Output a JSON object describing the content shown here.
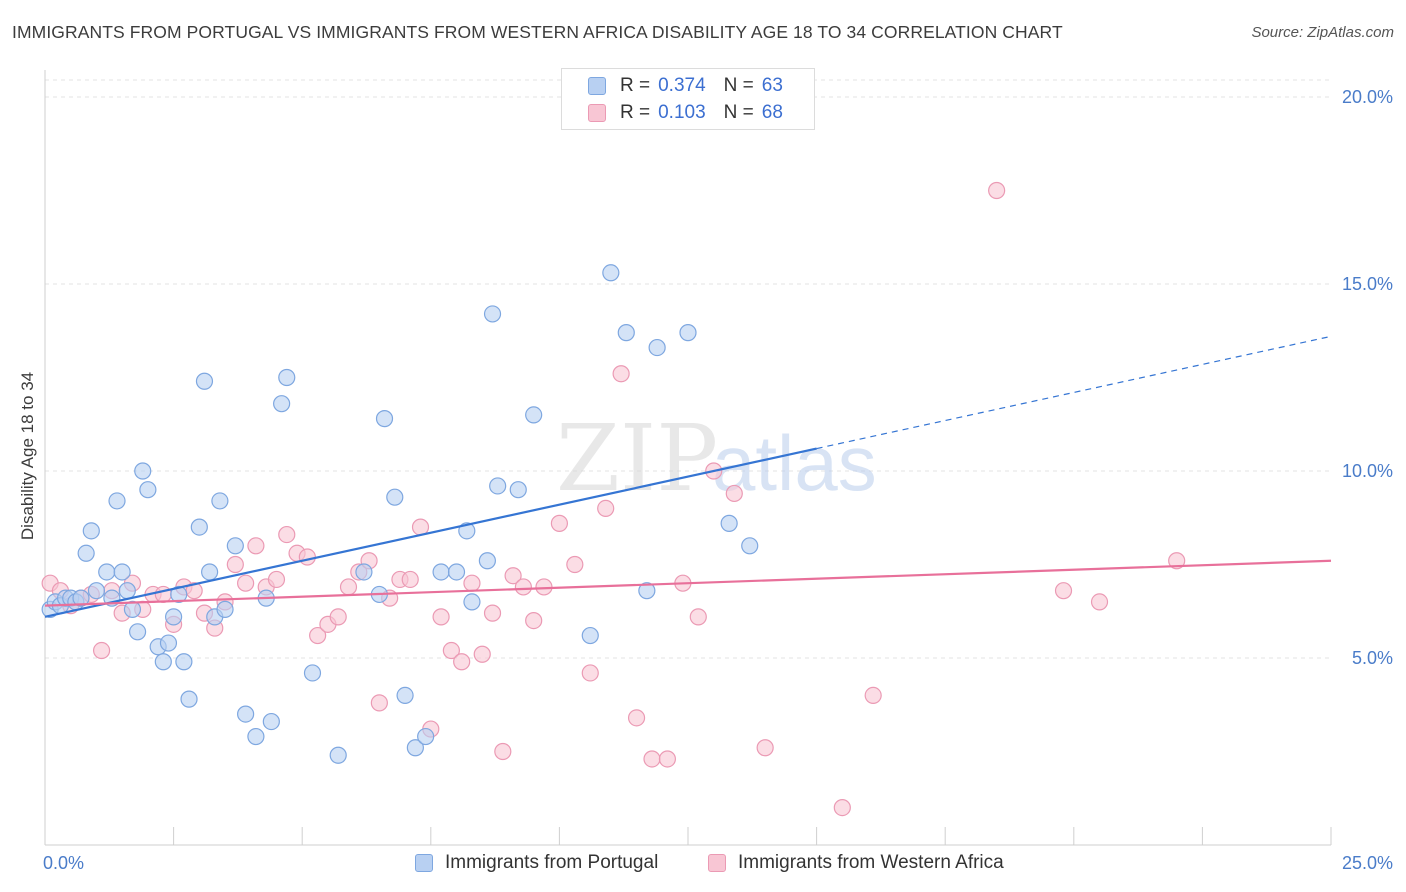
{
  "header": {
    "title": "IMMIGRANTS FROM PORTUGAL VS IMMIGRANTS FROM WESTERN AFRICA DISABILITY AGE 18 TO 34 CORRELATION CHART",
    "source": "Source: ZipAtlas.com"
  },
  "legend": {
    "portugal": {
      "r_label": "R =",
      "r_value": "0.374",
      "n_label": "N =",
      "n_value": "63"
    },
    "western_africa": {
      "r_label": "R =",
      "r_value": "0.103",
      "n_label": "N =",
      "n_value": "68"
    }
  },
  "watermark": {
    "zip": "ZIP",
    "atlas": "atlas"
  },
  "chart_data": {
    "type": "scatter",
    "ylabel": "Disability Age 18 to 34",
    "xlim": [
      0,
      25
    ],
    "ylim": [
      0,
      20.5
    ],
    "x_tick_labels": {
      "left": "0.0%",
      "right": "25.0%"
    },
    "y_ticks": [
      {
        "value": 5,
        "label": "5.0%"
      },
      {
        "value": 10,
        "label": "10.0%"
      },
      {
        "value": 15,
        "label": "15.0%"
      },
      {
        "value": 20,
        "label": "20.0%"
      }
    ],
    "grid": "horizontal-dashed",
    "legend_position": "top-center",
    "colors": {
      "portugal_fill": "#b8d0f2",
      "portugal_stroke": "#7ea7e0",
      "portugal_line": "#3575d3",
      "africa_fill": "#f8c6d4",
      "africa_stroke": "#eb9ab4",
      "africa_line": "#e8709a"
    },
    "series": [
      {
        "name": "Immigrants from Portugal",
        "trend": {
          "x0": 0,
          "y0": 6.1,
          "x1": 15,
          "y1": 10.6,
          "dash_to_x": 25,
          "dash_to_y": 13.6
        },
        "points": [
          [
            0.1,
            6.3
          ],
          [
            0.2,
            6.5
          ],
          [
            0.3,
            6.4
          ],
          [
            0.4,
            6.6
          ],
          [
            0.5,
            6.6
          ],
          [
            0.6,
            6.5
          ],
          [
            0.7,
            6.6
          ],
          [
            0.8,
            7.8
          ],
          [
            0.9,
            8.4
          ],
          [
            1.0,
            6.8
          ],
          [
            1.2,
            7.3
          ],
          [
            1.3,
            6.6
          ],
          [
            1.4,
            9.2
          ],
          [
            1.5,
            7.3
          ],
          [
            1.6,
            6.8
          ],
          [
            1.7,
            6.3
          ],
          [
            1.8,
            5.7
          ],
          [
            1.9,
            10.0
          ],
          [
            2.0,
            9.5
          ],
          [
            2.2,
            5.3
          ],
          [
            2.3,
            4.9
          ],
          [
            2.4,
            5.4
          ],
          [
            2.5,
            6.1
          ],
          [
            2.6,
            6.7
          ],
          [
            2.7,
            4.9
          ],
          [
            2.8,
            3.9
          ],
          [
            3.0,
            8.5
          ],
          [
            3.1,
            12.4
          ],
          [
            3.2,
            7.3
          ],
          [
            3.3,
            6.1
          ],
          [
            3.4,
            9.2
          ],
          [
            3.5,
            6.3
          ],
          [
            3.7,
            8.0
          ],
          [
            3.9,
            3.5
          ],
          [
            4.1,
            2.9
          ],
          [
            4.3,
            6.6
          ],
          [
            4.4,
            3.3
          ],
          [
            4.6,
            11.8
          ],
          [
            4.7,
            12.5
          ],
          [
            5.2,
            4.6
          ],
          [
            5.7,
            2.4
          ],
          [
            6.2,
            7.3
          ],
          [
            6.5,
            6.7
          ],
          [
            6.6,
            11.4
          ],
          [
            6.8,
            9.3
          ],
          [
            7.0,
            4.0
          ],
          [
            7.2,
            2.6
          ],
          [
            7.4,
            2.9
          ],
          [
            7.7,
            7.3
          ],
          [
            8.0,
            7.3
          ],
          [
            8.2,
            8.4
          ],
          [
            8.3,
            6.5
          ],
          [
            8.6,
            7.6
          ],
          [
            8.7,
            14.2
          ],
          [
            8.8,
            9.6
          ],
          [
            9.2,
            9.5
          ],
          [
            9.5,
            11.5
          ],
          [
            10.6,
            5.6
          ],
          [
            11.0,
            15.3
          ],
          [
            11.3,
            13.7
          ],
          [
            11.7,
            6.8
          ],
          [
            11.9,
            13.3
          ],
          [
            12.5,
            13.7
          ],
          [
            13.3,
            8.6
          ],
          [
            13.7,
            8.0
          ]
        ]
      },
      {
        "name": "Immigrants from Western Africa",
        "trend": {
          "x0": 0,
          "y0": 6.4,
          "x1": 25,
          "y1": 7.6
        },
        "points": [
          [
            0.1,
            7.0
          ],
          [
            0.3,
            6.8
          ],
          [
            0.5,
            6.4
          ],
          [
            0.7,
            6.6
          ],
          [
            0.9,
            6.7
          ],
          [
            1.1,
            5.2
          ],
          [
            1.3,
            6.8
          ],
          [
            1.5,
            6.2
          ],
          [
            1.7,
            7.0
          ],
          [
            1.9,
            6.3
          ],
          [
            2.1,
            6.7
          ],
          [
            2.3,
            6.7
          ],
          [
            2.5,
            5.9
          ],
          [
            2.7,
            6.9
          ],
          [
            2.9,
            6.8
          ],
          [
            3.1,
            6.2
          ],
          [
            3.3,
            5.8
          ],
          [
            3.5,
            6.5
          ],
          [
            3.7,
            7.5
          ],
          [
            3.9,
            7.0
          ],
          [
            4.1,
            8.0
          ],
          [
            4.3,
            6.9
          ],
          [
            4.5,
            7.1
          ],
          [
            4.7,
            8.3
          ],
          [
            4.9,
            7.8
          ],
          [
            5.1,
            7.7
          ],
          [
            5.3,
            5.6
          ],
          [
            5.5,
            5.9
          ],
          [
            5.7,
            6.1
          ],
          [
            5.9,
            6.9
          ],
          [
            6.1,
            7.3
          ],
          [
            6.3,
            7.6
          ],
          [
            6.5,
            3.8
          ],
          [
            6.7,
            6.6
          ],
          [
            6.9,
            7.1
          ],
          [
            7.1,
            7.1
          ],
          [
            7.3,
            8.5
          ],
          [
            7.5,
            3.1
          ],
          [
            7.7,
            6.1
          ],
          [
            7.9,
            5.2
          ],
          [
            8.1,
            4.9
          ],
          [
            8.3,
            7.0
          ],
          [
            8.5,
            5.1
          ],
          [
            8.7,
            6.2
          ],
          [
            8.9,
            2.5
          ],
          [
            9.1,
            7.2
          ],
          [
            9.3,
            6.9
          ],
          [
            9.5,
            6.0
          ],
          [
            9.7,
            6.9
          ],
          [
            10.0,
            8.6
          ],
          [
            10.3,
            7.5
          ],
          [
            10.6,
            4.6
          ],
          [
            10.9,
            9.0
          ],
          [
            11.2,
            12.6
          ],
          [
            11.5,
            3.4
          ],
          [
            11.8,
            2.3
          ],
          [
            12.1,
            2.3
          ],
          [
            12.4,
            7.0
          ],
          [
            12.7,
            6.1
          ],
          [
            13.0,
            10.0
          ],
          [
            13.4,
            9.4
          ],
          [
            14.0,
            2.6
          ],
          [
            15.5,
            1.0
          ],
          [
            16.1,
            4.0
          ],
          [
            18.5,
            17.5
          ],
          [
            19.8,
            6.8
          ],
          [
            20.5,
            6.5
          ],
          [
            22.0,
            7.6
          ]
        ]
      }
    ]
  },
  "bottom_legend": {
    "portugal": "Immigrants from Portugal",
    "western_africa": "Immigrants from Western Africa"
  }
}
